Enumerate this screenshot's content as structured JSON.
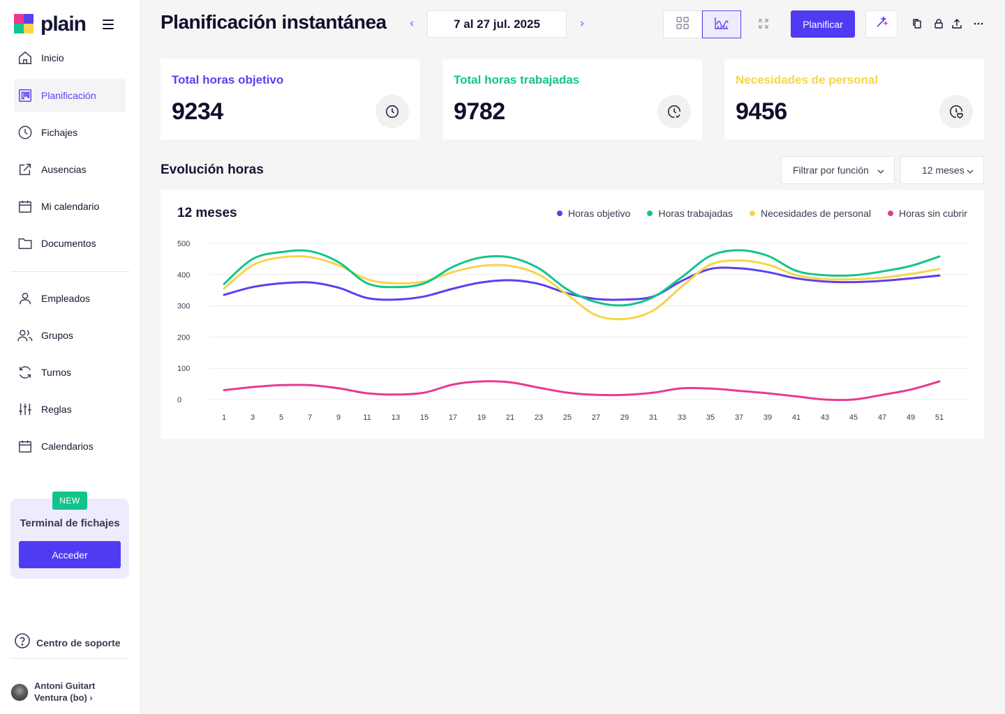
{
  "app": {
    "logo_text": "plain"
  },
  "sidebar": {
    "items": [
      {
        "label": "Inicio",
        "icon": "home-icon"
      },
      {
        "label": "Planificación",
        "icon": "planning-board-icon",
        "active": true
      },
      {
        "label": "Fichajes",
        "icon": "clock-icon"
      },
      {
        "label": "Ausencias",
        "icon": "external-link-icon"
      },
      {
        "label": "Mi calendario",
        "icon": "calendar-icon"
      },
      {
        "label": "Documentos",
        "icon": "folder-icon"
      },
      {
        "label": "Empleados",
        "icon": "user-icon"
      },
      {
        "label": "Grupos",
        "icon": "users-icon"
      },
      {
        "label": "Turnos",
        "icon": "rotate-icon"
      },
      {
        "label": "Reglas",
        "icon": "sliders-icon"
      },
      {
        "label": "Calendarios",
        "icon": "calendar-icon"
      }
    ],
    "promo": {
      "badge": "NEW",
      "title": "Terminal de fichajes",
      "button": "Acceder"
    },
    "support": {
      "label": "Centro de soporte"
    },
    "user": {
      "name_line1": "Antoni Guitart",
      "name_line2": "Ventura (bo)"
    }
  },
  "header": {
    "title": "Planificación instantánea",
    "date_range": "7 al 27 jul. 2025",
    "plan_button": "Planificar"
  },
  "stats": [
    {
      "label": "Total horas objetivo",
      "value": "9234",
      "color": "#5b3ff0"
    },
    {
      "label": "Total horas trabajadas",
      "value": "9782",
      "color": "#12c48b"
    },
    {
      "label": "Necesidades de personal",
      "value": "9456",
      "color": "#f7d44a"
    }
  ],
  "section": {
    "title": "Evolución horas",
    "filter_label": "Filtrar por función",
    "period_label": "12 meses"
  },
  "chart": {
    "title": "12 meses"
  },
  "chart_data": {
    "type": "line",
    "x": [
      1,
      3,
      5,
      7,
      9,
      11,
      13,
      15,
      17,
      19,
      21,
      23,
      25,
      27,
      29,
      31,
      33,
      35,
      37,
      39,
      41,
      43,
      45,
      47,
      49,
      51
    ],
    "ylim": [
      0,
      500
    ],
    "yticks": [
      0,
      100,
      200,
      300,
      400,
      500
    ],
    "grid": true,
    "legend_position": "top-right",
    "series": [
      {
        "name": "Horas objetivo",
        "color": "#5b3ff0",
        "values": [
          335,
          360,
          372,
          375,
          358,
          325,
          320,
          330,
          355,
          375,
          382,
          370,
          340,
          322,
          320,
          330,
          380,
          418,
          420,
          408,
          388,
          378,
          376,
          380,
          388,
          397
        ]
      },
      {
        "name": "Horas trabajadas",
        "color": "#12c48b",
        "values": [
          370,
          450,
          472,
          475,
          440,
          372,
          360,
          372,
          425,
          455,
          455,
          420,
          352,
          312,
          302,
          328,
          392,
          460,
          478,
          460,
          412,
          398,
          398,
          410,
          428,
          458
        ]
      },
      {
        "name": "Necesidades de personal",
        "color": "#f7d44a",
        "values": [
          355,
          430,
          455,
          456,
          430,
          385,
          372,
          378,
          408,
          428,
          428,
          400,
          335,
          270,
          258,
          285,
          362,
          432,
          445,
          432,
          398,
          386,
          385,
          390,
          402,
          418
        ]
      },
      {
        "name": "Horas sin cubrir",
        "color": "#e8398f",
        "values": [
          30,
          40,
          46,
          46,
          36,
          20,
          16,
          22,
          48,
          58,
          55,
          38,
          22,
          15,
          15,
          22,
          36,
          35,
          28,
          20,
          10,
          0,
          0,
          15,
          32,
          58
        ]
      }
    ]
  }
}
